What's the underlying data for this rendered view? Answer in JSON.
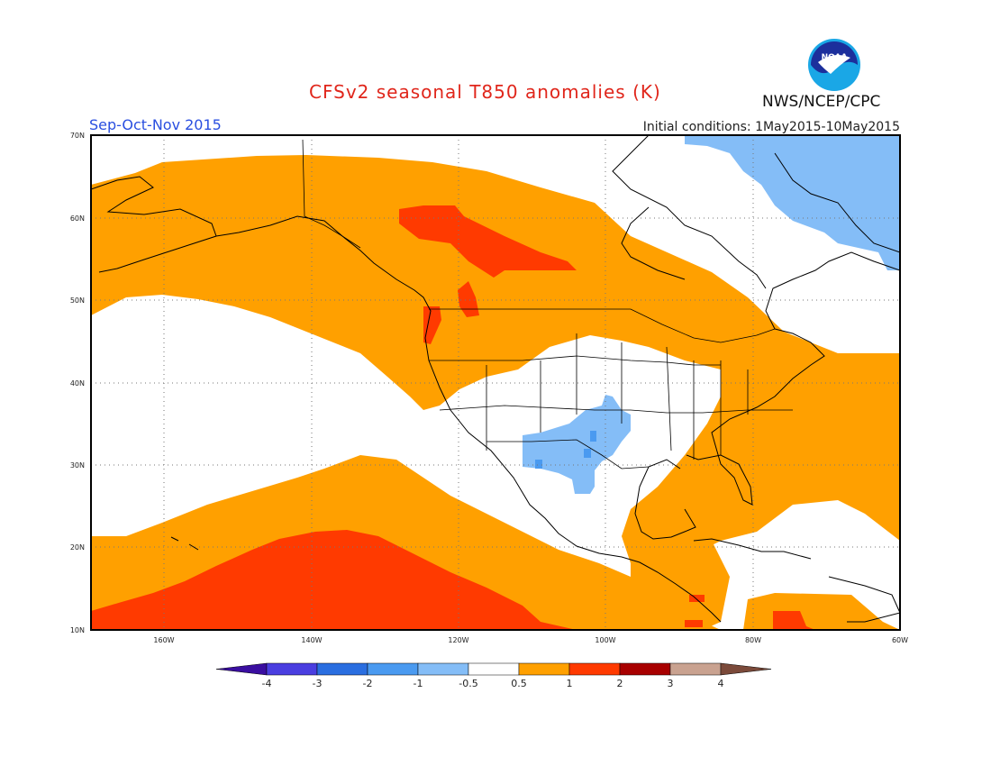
{
  "title": "CFSv2 seasonal T850 anomalies (K)",
  "season": "Sep-Oct-Nov 2015",
  "initial_conditions": "Initial conditions: 1May2015-10May2015",
  "agency": "NWS/NCEP/CPC",
  "logo_text": "NOAA",
  "lat_labels": [
    "70N",
    "60N",
    "50N",
    "40N",
    "30N",
    "20N",
    "10N"
  ],
  "lon_labels": [
    "160W",
    "140W",
    "120W",
    "100W",
    "80W",
    "60W"
  ],
  "colorbar": {
    "labels": [
      "-4",
      "-3",
      "-2",
      "-1",
      "-0.5",
      "0.5",
      "1",
      "2",
      "3",
      "4"
    ],
    "colors": [
      "#3a0ea0",
      "#4a3ee0",
      "#2a6ee0",
      "#4a9af0",
      "#84bdf7",
      "#ffffff",
      "#ffa000",
      "#ff3a00",
      "#a80000",
      "#c9a290",
      "#7b4a3a"
    ]
  },
  "colors": {
    "neutral": "#ffffff",
    "warm_0_5_to_1": "#ffa000",
    "warm_1_to_2": "#ff3a00",
    "cool_minus1_to_minus0_5": "#84bdf7",
    "cool_minus2_to_minus1": "#4a9af0"
  }
}
